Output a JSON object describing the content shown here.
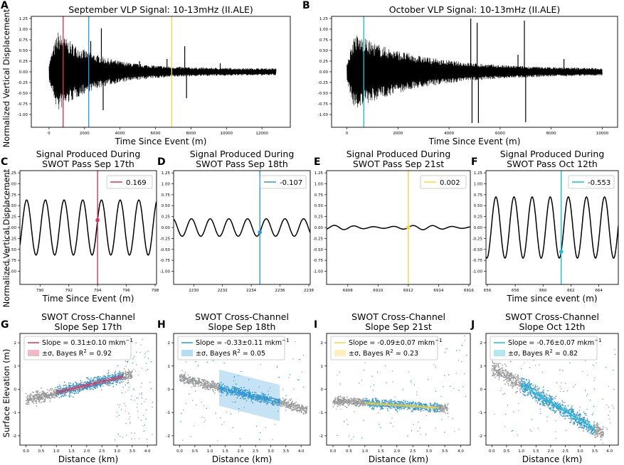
{
  "figure": {
    "shared_ylabels": {
      "top": "Normalized Vertical Displacement",
      "middle": "Normalized Vertical Displacement",
      "bottom": "Surface Elevation (m)"
    }
  },
  "colors": {
    "red": "#d1385b",
    "blue": "#2e9ad6",
    "yellow": "#f5d547",
    "cyan": "#22bcd1",
    "trace": "#000000",
    "points_gray": "#9a9a9a",
    "points_blue": "#2a96d4"
  },
  "chart_data": [
    {
      "id": "A",
      "type": "line",
      "title": "September VLP Signal: 10-13mHz (II.ALE)",
      "xlabel": "Time Since Event (m)",
      "ylabel": "Normalized Vertical Displacement",
      "xlim": [
        -1000,
        13600
      ],
      "ylim": [
        -1.3,
        1.3
      ],
      "xticks": [
        0,
        2000,
        4000,
        6000,
        8000,
        10000,
        12000
      ],
      "yticks": [
        -1.0,
        -0.75,
        -0.5,
        -0.25,
        0.0,
        0.25,
        0.5,
        0.75,
        1.0,
        1.25
      ],
      "signal": {
        "start": 0,
        "end": 12800,
        "peak_time": 500,
        "peak_amp": 0.95,
        "decay": 2200,
        "floor": 0.08
      },
      "spikes": [
        {
          "x": 2350,
          "y": 0.72
        },
        {
          "x": 2950,
          "y": 1.02
        },
        {
          "x": 3050,
          "y": -0.9
        },
        {
          "x": 5100,
          "y": 0.25
        },
        {
          "x": 6650,
          "y": 0.3
        },
        {
          "x": 7650,
          "y": 0.6
        },
        {
          "x": 7750,
          "y": -0.62
        },
        {
          "x": 9650,
          "y": 0.2
        }
      ],
      "vlines": [
        {
          "x": 794,
          "color": "red"
        },
        {
          "x": 2235,
          "color": "blue"
        },
        {
          "x": 6912,
          "color": "yellow"
        }
      ]
    },
    {
      "id": "B",
      "type": "line",
      "title": "October VLP Signal: 10-13mHz (II.ALE)",
      "xlabel": "Time Since Event (m)",
      "xlim": [
        -600,
        10600
      ],
      "ylim": [
        -1.3,
        1.3
      ],
      "xticks": [
        0,
        2000,
        4000,
        6000,
        8000,
        10000
      ],
      "yticks": [
        -1.0,
        -0.75,
        -0.5,
        -0.25,
        0.0,
        0.25,
        0.5,
        0.75,
        1.0,
        1.25
      ],
      "signal": {
        "start": 0,
        "end": 10000,
        "peak_time": 300,
        "peak_amp": 0.9,
        "decay": 2600,
        "floor": 0.07
      },
      "spikes": [
        {
          "x": 4850,
          "y": 1.25
        },
        {
          "x": 4900,
          "y": -1.2
        },
        {
          "x": 5100,
          "y": 1.15
        },
        {
          "x": 5150,
          "y": -1.2
        },
        {
          "x": 6700,
          "y": 0.4
        },
        {
          "x": 6950,
          "y": 1.2
        },
        {
          "x": 7000,
          "y": -1.18
        },
        {
          "x": 8500,
          "y": 0.3
        }
      ],
      "vlines": [
        {
          "x": 661,
          "color": "cyan"
        }
      ]
    },
    {
      "id": "C",
      "type": "line",
      "title": [
        "Signal Produced During",
        "SWOT Pass Sep 17th"
      ],
      "xlabel": "Time Since Event (m)",
      "ylabel": "Normalized Vertical Displacement",
      "xlim": [
        788.6,
        798.1
      ],
      "ylim": [
        -1.3,
        1.3
      ],
      "xticks": [
        790,
        792,
        794,
        796,
        798
      ],
      "yticks": [
        -1.0,
        -0.75,
        -0.5,
        -0.25,
        0.0,
        0.25,
        0.5,
        0.75,
        1.0,
        1.25
      ],
      "wave": {
        "amp": 0.63,
        "period": 1.3,
        "at": 794,
        "value": 0.169
      },
      "vline": {
        "x": 794,
        "color": "red"
      },
      "legend": [
        {
          "label": "0.169",
          "color": "red"
        }
      ]
    },
    {
      "id": "D",
      "type": "line",
      "title": [
        "Signal Produced During",
        "SWOT Pass Sep 18th"
      ],
      "xlim": [
        2228.6,
        2238.1
      ],
      "ylim": [
        -1.3,
        1.3
      ],
      "xticks": [
        2230,
        2232,
        2234,
        2236,
        2238
      ],
      "yticks": [
        -1.0,
        -0.75,
        -0.5,
        -0.25,
        0.0,
        0.25,
        0.5,
        0.75,
        1.0,
        1.25
      ],
      "wave": {
        "amp": 0.2,
        "period": 1.3,
        "at": 2234.6,
        "value": -0.107
      },
      "vline": {
        "x": 2234.6,
        "color": "blue"
      },
      "legend": [
        {
          "label": "-0.107",
          "color": "blue"
        }
      ]
    },
    {
      "id": "E",
      "type": "line",
      "title": [
        "Signal Produced During",
        "SWOT Pass Sep 21st"
      ],
      "xlim": [
        6906.6,
        6916.1
      ],
      "ylim": [
        -1.3,
        1.3
      ],
      "xticks": [
        6908,
        6910,
        6912,
        6914,
        6916
      ],
      "yticks": [
        -1.0,
        -0.75,
        -0.5,
        -0.25,
        0.0,
        0.25,
        0.5,
        0.75,
        1.0,
        1.25
      ],
      "wave": {
        "amp": 0.045,
        "period": 1.3,
        "at": 6912,
        "value": 0.002
      },
      "vline": {
        "x": 6912,
        "color": "yellow"
      },
      "legend": [
        {
          "label": "0.002",
          "color": "yellow"
        }
      ]
    },
    {
      "id": "F",
      "type": "line",
      "title": [
        "Signal Produced During",
        "SWOT Pass Oct 12th"
      ],
      "xlabel": "Time since event (m)",
      "xlim": [
        655.9,
        665.4
      ],
      "ylim": [
        -1.3,
        1.3
      ],
      "xticks": [
        656,
        658,
        660,
        662,
        664
      ],
      "yticks": [
        -1.0,
        -0.75,
        -0.5,
        -0.25,
        0.0,
        0.25,
        0.5,
        0.75,
        1.0,
        1.25
      ],
      "wave": {
        "amp": 0.7,
        "period": 1.3,
        "at": 661.3,
        "value": -0.553
      },
      "vline": {
        "x": 661.3,
        "color": "cyan"
      },
      "legend": [
        {
          "label": "-0.553",
          "color": "cyan"
        }
      ]
    },
    {
      "id": "G",
      "type": "scatter",
      "title": [
        "SWOT Cross-Channel",
        "Slope Sep 17th"
      ],
      "xlabel": "Distance (km)",
      "ylabel": "Surface Elevation (m)",
      "xlim": [
        -0.2,
        4.3
      ],
      "ylim": [
        -2.4,
        2.4
      ],
      "xticks": [
        0.0,
        0.5,
        1.0,
        1.5,
        2.0,
        2.5,
        3.0,
        3.5,
        4.0
      ],
      "yticks": [
        -2,
        -1,
        0,
        1,
        2
      ],
      "slope": 0.31,
      "intercept": -0.45,
      "sigma": 0.1,
      "cloud": {
        "x0": 0.0,
        "x1": 3.5,
        "spread": 0.12,
        "blue_x0": 1.0,
        "blue_x1": 3.2,
        "outlier_y": [
          -2.2,
          2.2
        ],
        "outlier_x": [
          2.9,
          4.2
        ]
      },
      "fit_color": "red",
      "legend": [
        {
          "label": "Slope = 0.31±0.10 mkm",
          "superscript": "−1",
          "kind": "line"
        },
        {
          "label": "±σ, Bayes R",
          "superscript": "2",
          "suffix": " = 0.92",
          "kind": "band"
        }
      ]
    },
    {
      "id": "H",
      "type": "scatter",
      "title": [
        "SWOT Cross-Channel",
        "Slope Sep 18th"
      ],
      "xlabel": "Distance (km)",
      "xlim": [
        -0.2,
        4.3
      ],
      "ylim": [
        -2.4,
        2.4
      ],
      "xticks": [
        0.0,
        0.5,
        1.0,
        1.5,
        2.0,
        2.5,
        3.0,
        3.5,
        4.0
      ],
      "yticks": [
        -2,
        -1,
        0,
        1,
        2
      ],
      "slope": -0.33,
      "intercept": 0.5,
      "sigma": 0.78,
      "band_x": [
        1.3,
        3.3
      ],
      "cloud": {
        "x0": 0.0,
        "x1": 4.2,
        "spread": 0.1,
        "blue_x0": 1.3,
        "blue_x1": 3.3,
        "outlier_y": [
          -2.3,
          2.3
        ],
        "outlier_x": [
          0.0,
          4.2
        ]
      },
      "fit_color": "blue",
      "legend": [
        {
          "label": "Slope = -0.33±0.11 mkm",
          "superscript": "−1",
          "kind": "line"
        },
        {
          "label": "±σ, Bayes R",
          "superscript": "2",
          "suffix": " = 0.05",
          "kind": "band"
        }
      ]
    },
    {
      "id": "I",
      "type": "scatter",
      "title": [
        "SWOT Cross-Channel",
        "Slope Sep 21st"
      ],
      "xlabel": "Distance (km)",
      "xlim": [
        -0.2,
        4.3
      ],
      "ylim": [
        -2.4,
        2.4
      ],
      "xticks": [
        0.0,
        0.5,
        1.0,
        1.5,
        2.0,
        2.5,
        3.0,
        3.5,
        4.0
      ],
      "yticks": [
        -2,
        -1,
        0,
        1,
        2
      ],
      "slope": -0.09,
      "intercept": -0.5,
      "sigma": 0.07,
      "cloud": {
        "x0": 0.0,
        "x1": 3.6,
        "spread": 0.09,
        "blue_x0": 1.0,
        "blue_x1": 3.3,
        "outlier_y": [
          -2.2,
          2.3
        ],
        "outlier_x": [
          0.1,
          4.2
        ]
      },
      "fit_color": "yellow",
      "legend": [
        {
          "label": "Slope = -0.09±0.07 mkm",
          "superscript": "−1",
          "kind": "line"
        },
        {
          "label": "±σ, Bayes R",
          "superscript": "2",
          "suffix": " = 0.23",
          "kind": "band"
        }
      ]
    },
    {
      "id": "J",
      "type": "scatter",
      "title": [
        "SWOT Cross-Channel",
        "Slope Oct 12th"
      ],
      "xlabel": "Distance (km)",
      "xlim": [
        -0.2,
        4.3
      ],
      "ylim": [
        -2.4,
        2.4
      ],
      "xticks": [
        0.0,
        0.5,
        1.0,
        1.5,
        2.0,
        2.5,
        3.0,
        3.5,
        4.0
      ],
      "yticks": [
        -2,
        -1,
        0,
        1,
        2
      ],
      "slope": -0.76,
      "intercept": 0.95,
      "sigma": 0.07,
      "cloud": {
        "x0": 0.0,
        "x1": 3.8,
        "spread": 0.17,
        "blue_x0": 1.0,
        "blue_x1": 3.5,
        "outlier_y": [
          -2.2,
          2.3
        ],
        "outlier_x": [
          0.0,
          4.2
        ]
      },
      "fit_color": "cyan",
      "legend": [
        {
          "label": "Slope = -0.76±0.07 mkm",
          "superscript": "−1",
          "kind": "line"
        },
        {
          "label": "±σ, Bayes R",
          "superscript": "2",
          "suffix": " = 0.82",
          "kind": "band"
        }
      ]
    }
  ]
}
